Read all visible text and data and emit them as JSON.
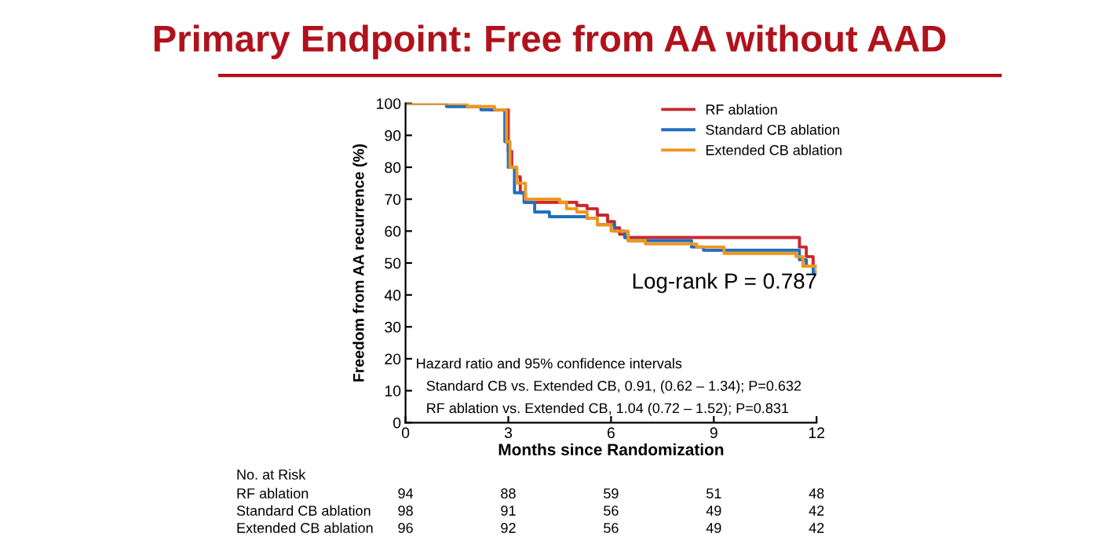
{
  "chart_data": {
    "type": "step",
    "title": "Primary Endpoint: Free from AA without AAD",
    "xlabel": "Months since Randomization",
    "ylabel": "Freedom from AA recurrence (%)",
    "xlim": [
      0,
      12
    ],
    "xticks": [
      0,
      3,
      6,
      9,
      12
    ],
    "ylim": [
      0,
      100
    ],
    "yticks": [
      0,
      10,
      20,
      30,
      40,
      50,
      60,
      70,
      80,
      90,
      100
    ],
    "grid": false,
    "legend": "top right",
    "series": [
      {
        "name": "RF ablation",
        "color": "#c8282e",
        "x": [
          2.5,
          3.0,
          3.1,
          3.2,
          3.35,
          3.5,
          5.0,
          5.3,
          5.6,
          5.9,
          6.1,
          6.25,
          6.4,
          11.5,
          11.7,
          11.9,
          12.0
        ],
        "values": [
          98,
          85,
          80,
          77,
          72,
          69,
          68,
          67,
          65,
          63,
          61,
          59,
          58,
          55,
          52,
          49,
          49
        ]
      },
      {
        "name": "Standard CB ablation",
        "color": "#1f6fbe",
        "x": [
          0,
          1.2,
          2.2,
          2.9,
          3.0,
          3.18,
          3.46,
          3.77,
          4.2,
          5.3,
          5.6,
          6.1,
          6.4,
          6.5,
          8.35,
          8.7,
          11.3,
          11.5,
          11.7,
          11.9,
          12.0
        ],
        "values": [
          100,
          99,
          98,
          88,
          80,
          72,
          69,
          66,
          64.5,
          64,
          62,
          60,
          58,
          57,
          55,
          54,
          54,
          51,
          49,
          47,
          47
        ]
      },
      {
        "name": "Extended CB ablation",
        "color": "#f0961e",
        "x": [
          0,
          1.8,
          2.6,
          2.95,
          3.05,
          3.25,
          3.5,
          4.4,
          4.5,
          4.7,
          5.0,
          5.3,
          5.6,
          6.0,
          6.3,
          6.5,
          7.0,
          8.5,
          9.3,
          11.4,
          11.6,
          12.0
        ],
        "values": [
          100,
          99,
          98,
          88,
          80,
          75,
          70,
          70,
          69,
          67,
          66,
          64,
          62,
          60,
          60,
          57,
          56,
          55,
          53,
          52,
          49,
          47
        ]
      }
    ],
    "annotations": [
      "Log-rank P = 0.787",
      "Hazard ratio and 95% confidence intervals",
      "Standard CB vs. Extended CB, 0.91, (0.62 – 1.34); P=0.632",
      "RF ablation vs. Extended CB, 1.04 (0.72 – 1.52); P=0.831",
      "No. at Risk",
      "RF ablation",
      "94",
      "88",
      "59",
      "51",
      "48",
      "Standard CB ablation",
      "98",
      "91",
      "56",
      "49",
      "42",
      "Extended CB ablation",
      "96",
      "92",
      "56",
      "49",
      "42"
    ]
  }
}
